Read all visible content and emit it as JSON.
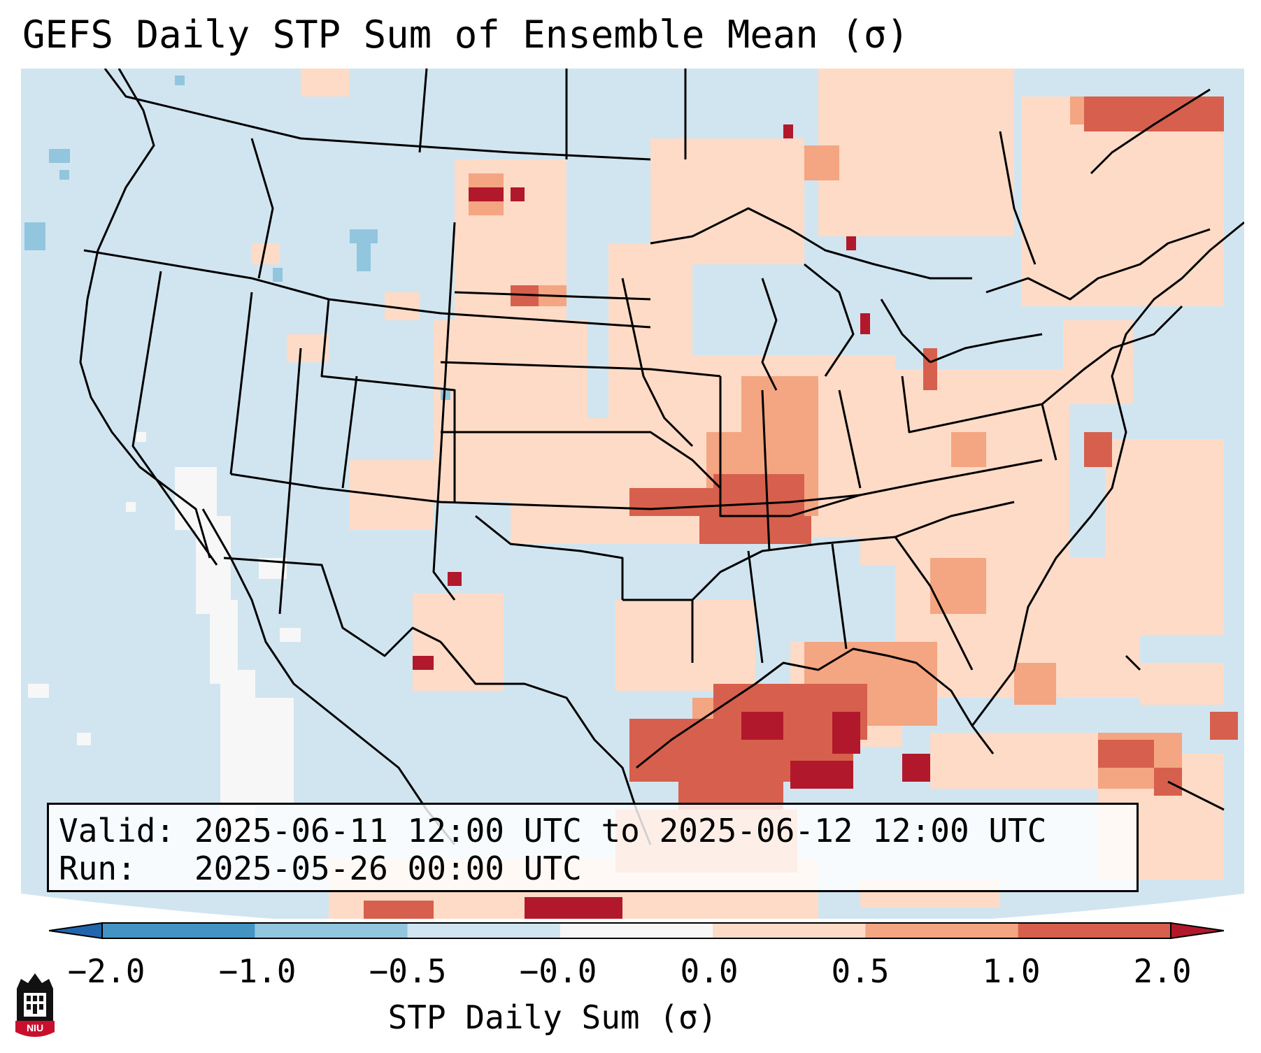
{
  "title": "GEFS Daily STP Sum of Ensemble Mean (σ)",
  "info": {
    "valid_label": "Valid:",
    "valid_value": "2025-06-11 12:00 UTC to 2025-06-12 12:00 UTC",
    "run_label": "Run:",
    "run_value": "2025-05-26 00:00 UTC"
  },
  "colorbar": {
    "label": "STP Daily Sum (σ)",
    "ticks": [
      "−2.0",
      "−1.0",
      "−0.5",
      "−0.0",
      "0.0",
      "0.5",
      "1.0",
      "2.0"
    ],
    "bins": [
      {
        "range": "<-2.0",
        "color": "#2166ac"
      },
      {
        "range": "-2.0 to -1.0",
        "color": "#4393c3"
      },
      {
        "range": "-1.0 to -0.5",
        "color": "#92c5de"
      },
      {
        "range": "-0.5 to -0.0",
        "color": "#d1e5f0"
      },
      {
        "range": "-0.0 to 0.0",
        "color": "#f7f7f7"
      },
      {
        "range": "0.0 to 0.5",
        "color": "#fddbc7"
      },
      {
        "range": "0.5 to 1.0",
        "color": "#f4a582"
      },
      {
        "range": "1.0 to 2.0",
        "color": "#d6604d"
      },
      {
        "range": ">2.0",
        "color": "#b2182b"
      }
    ]
  },
  "logo": {
    "text": "NIU"
  },
  "map_regions": [
    {
      "name": "central-plains-high",
      "level": "1.0 to 2.0"
    },
    {
      "name": "northern-gulf-high",
      "level": ">2.0"
    },
    {
      "name": "midwest-moderate",
      "level": "0.5 to 1.0"
    },
    {
      "name": "southeast-moderate",
      "level": "0.0 to 0.5"
    },
    {
      "name": "atlantic-moderate",
      "level": "0.0 to 0.5"
    },
    {
      "name": "eastern-canada-moderate",
      "level": "0.0 to 0.5"
    },
    {
      "name": "west-background",
      "level": "-0.5 to -0.0"
    },
    {
      "name": "southwest-neutral",
      "level": "-0.0 to 0.0"
    }
  ]
}
